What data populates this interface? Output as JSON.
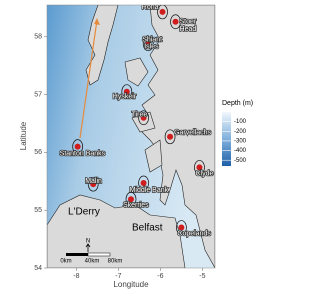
{
  "map": {
    "xlabel": "Longitude",
    "ylabel": "Latitude",
    "xlim": [
      -8.7,
      -4.7
    ],
    "ylim": [
      54,
      58.55
    ],
    "xticks": [
      -8,
      -7,
      -6,
      -5
    ],
    "yticks": [
      54,
      55,
      56,
      57,
      58
    ],
    "legend": {
      "title": "Depth (m)",
      "lim": [
        -560,
        0
      ],
      "ticks": [
        -100,
        -200,
        -300,
        -400,
        -500
      ]
    },
    "sites": [
      {
        "name": "Rona",
        "lon": -5.95,
        "lat": 58.43
      },
      {
        "name": "Stoer Head",
        "lon": -5.64,
        "lat": 58.26
      },
      {
        "name": "Shiant Isles",
        "lon": -6.29,
        "lat": 57.88
      },
      {
        "name": "Hyskeir",
        "lon": -6.8,
        "lat": 57.05
      },
      {
        "name": "Tiree",
        "lon": -6.4,
        "lat": 56.6
      },
      {
        "name": "Garvellachs",
        "lon": -5.77,
        "lat": 56.27
      },
      {
        "name": "Clyde",
        "lon": -5.07,
        "lat": 55.74
      },
      {
        "name": "Stanton Banks",
        "lon": -7.97,
        "lat": 56.1
      },
      {
        "name": "Malin",
        "lon": -7.6,
        "lat": 55.45
      },
      {
        "name": "Middle Bank",
        "lon": -6.4,
        "lat": 55.47
      },
      {
        "name": "Skerries",
        "lon": -6.7,
        "lat": 55.19
      },
      {
        "name": "Copelands",
        "lon": -5.5,
        "lat": 54.7
      }
    ],
    "places": [
      "L'Derry",
      "Belfast"
    ],
    "north": "N",
    "scale_bar": [
      "0km",
      "40km",
      "80km"
    ]
  }
}
